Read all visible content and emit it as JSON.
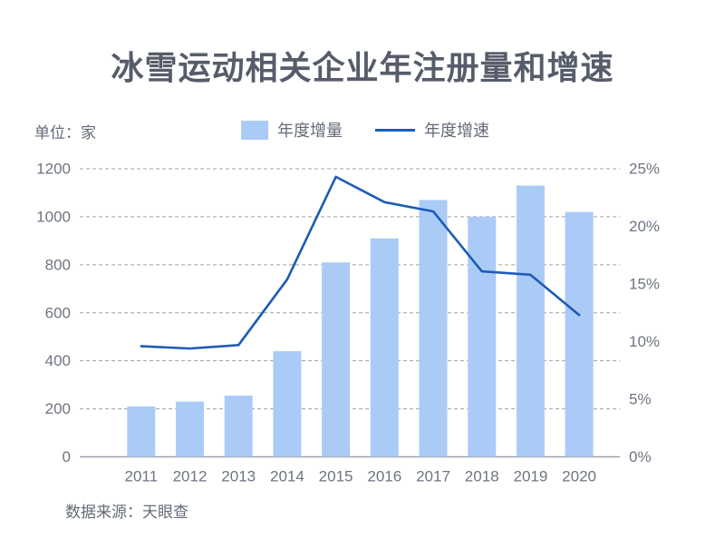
{
  "page": {
    "title": "冰雪运动相关企业年注册量和增速",
    "unit_label": "单位：家",
    "source": "数据来源：天眼查"
  },
  "legend": {
    "bar_label": "年度增量",
    "line_label": "年度增速"
  },
  "colors": {
    "bar_fill": "#abcbf7",
    "line_stroke": "#1d5cb5",
    "grid": "#9aa0a9",
    "tick_text": "#6e7482",
    "title_text": "#565c6a"
  },
  "chart_data": {
    "type": "bar",
    "subtype": "bar+line combo, dual axis",
    "title": "冰雪运动相关企业年注册量和增速",
    "categories": [
      "2011",
      "2012",
      "2013",
      "2014",
      "2015",
      "2016",
      "2017",
      "2018",
      "2019",
      "2020"
    ],
    "series": [
      {
        "name": "年度增量",
        "type": "bar",
        "axis": "left",
        "unit": "家",
        "values": [
          210,
          230,
          255,
          440,
          810,
          910,
          1070,
          1000,
          1130,
          1020
        ]
      },
      {
        "name": "年度增速",
        "type": "line",
        "axis": "right",
        "unit": "%",
        "values": [
          9.6,
          9.4,
          9.7,
          15.4,
          24.3,
          22.1,
          21.3,
          16.1,
          15.8,
          12.3
        ]
      }
    ],
    "left_axis": {
      "label": "单位：家",
      "ticks": [
        "0",
        "200",
        "400",
        "600",
        "800",
        "1000",
        "1200"
      ],
      "range": [
        0,
        1200
      ]
    },
    "right_axis": {
      "ticks": [
        "0%",
        "5%",
        "10%",
        "15%",
        "20%",
        "25%"
      ],
      "range": [
        0,
        25
      ]
    },
    "xlabel": "",
    "ylabel": "",
    "grid": "horizontal dashed",
    "legend_position": "top-center",
    "source": "数据来源：天眼查"
  }
}
